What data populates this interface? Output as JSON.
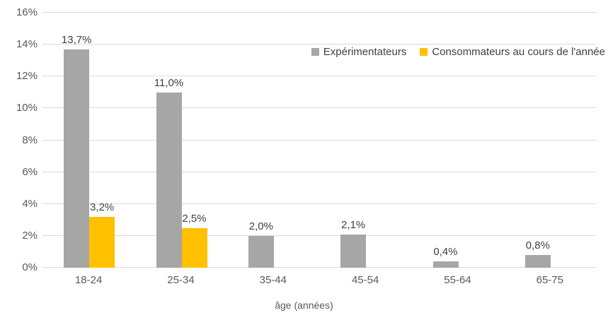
{
  "chart_data": {
    "type": "bar",
    "categories": [
      "18-24",
      "25-34",
      "35-44",
      "45-54",
      "55-64",
      "65-75"
    ],
    "series": [
      {
        "name": "Expérimentateurs",
        "color": "#a6a6a6",
        "values": [
          13.7,
          11.0,
          2.0,
          2.1,
          0.4,
          0.8
        ],
        "value_labels": [
          "13,7%",
          "11,0%",
          "2,0%",
          "2,1%",
          "0,4%",
          "0,8%"
        ]
      },
      {
        "name": "Consommateurs au cours de l'année",
        "color": "#ffc000",
        "values": [
          3.2,
          2.5,
          null,
          null,
          null,
          null
        ],
        "value_labels": [
          "3,2%",
          "2,5%",
          null,
          null,
          null,
          null
        ]
      }
    ],
    "title": "",
    "xlabel": "âge (années)",
    "ylabel": "",
    "ylim": [
      0,
      16
    ],
    "ytick_step": 2,
    "ytick_labels": [
      "0%",
      "2%",
      "4%",
      "6%",
      "8%",
      "10%",
      "12%",
      "14%",
      "16%"
    ],
    "grid": true,
    "legend_position": "top-right-inside"
  },
  "colors": {
    "background": "#ffffff",
    "gridline": "#d9d9d9",
    "axis_text": "#595959",
    "data_label_text": "#404040"
  }
}
